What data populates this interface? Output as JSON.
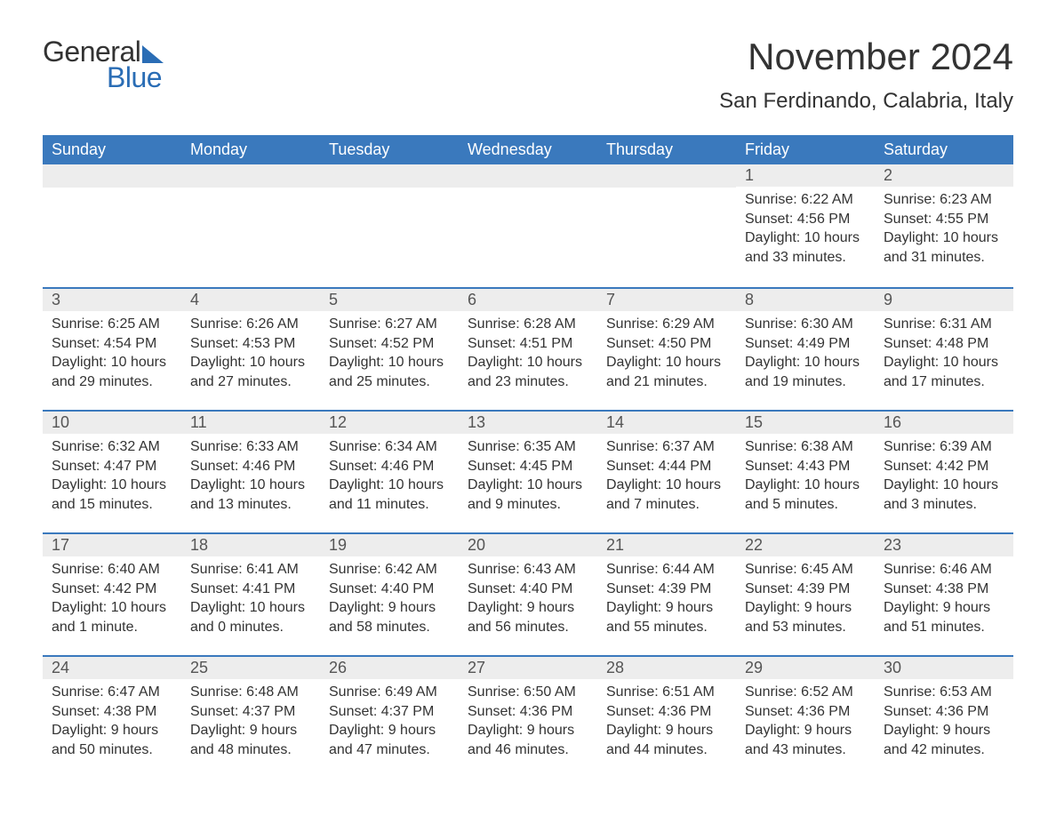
{
  "brand": {
    "text_general": "General",
    "text_blue": "Blue",
    "accent_color": "#2a6db5"
  },
  "header": {
    "month_title": "November 2024",
    "location": "San Ferdinando, Calabria, Italy"
  },
  "colors": {
    "header_bg": "#3a79bd",
    "header_fg": "#ffffff",
    "daynum_bg": "#ededed",
    "row_divider": "#3a79bd",
    "text": "#333333",
    "page_bg": "#ffffff"
  },
  "typography": {
    "title_fontsize_pt": 32,
    "location_fontsize_pt": 18,
    "dayheader_fontsize_pt": 14,
    "daynum_fontsize_pt": 14,
    "body_fontsize_pt": 12
  },
  "calendar": {
    "type": "table",
    "day_headers": [
      "Sunday",
      "Monday",
      "Tuesday",
      "Wednesday",
      "Thursday",
      "Friday",
      "Saturday"
    ],
    "weeks": [
      [
        null,
        null,
        null,
        null,
        null,
        {
          "n": "1",
          "sunrise": "Sunrise: 6:22 AM",
          "sunset": "Sunset: 4:56 PM",
          "daylight": "Daylight: 10 hours and 33 minutes."
        },
        {
          "n": "2",
          "sunrise": "Sunrise: 6:23 AM",
          "sunset": "Sunset: 4:55 PM",
          "daylight": "Daylight: 10 hours and 31 minutes."
        }
      ],
      [
        {
          "n": "3",
          "sunrise": "Sunrise: 6:25 AM",
          "sunset": "Sunset: 4:54 PM",
          "daylight": "Daylight: 10 hours and 29 minutes."
        },
        {
          "n": "4",
          "sunrise": "Sunrise: 6:26 AM",
          "sunset": "Sunset: 4:53 PM",
          "daylight": "Daylight: 10 hours and 27 minutes."
        },
        {
          "n": "5",
          "sunrise": "Sunrise: 6:27 AM",
          "sunset": "Sunset: 4:52 PM",
          "daylight": "Daylight: 10 hours and 25 minutes."
        },
        {
          "n": "6",
          "sunrise": "Sunrise: 6:28 AM",
          "sunset": "Sunset: 4:51 PM",
          "daylight": "Daylight: 10 hours and 23 minutes."
        },
        {
          "n": "7",
          "sunrise": "Sunrise: 6:29 AM",
          "sunset": "Sunset: 4:50 PM",
          "daylight": "Daylight: 10 hours and 21 minutes."
        },
        {
          "n": "8",
          "sunrise": "Sunrise: 6:30 AM",
          "sunset": "Sunset: 4:49 PM",
          "daylight": "Daylight: 10 hours and 19 minutes."
        },
        {
          "n": "9",
          "sunrise": "Sunrise: 6:31 AM",
          "sunset": "Sunset: 4:48 PM",
          "daylight": "Daylight: 10 hours and 17 minutes."
        }
      ],
      [
        {
          "n": "10",
          "sunrise": "Sunrise: 6:32 AM",
          "sunset": "Sunset: 4:47 PM",
          "daylight": "Daylight: 10 hours and 15 minutes."
        },
        {
          "n": "11",
          "sunrise": "Sunrise: 6:33 AM",
          "sunset": "Sunset: 4:46 PM",
          "daylight": "Daylight: 10 hours and 13 minutes."
        },
        {
          "n": "12",
          "sunrise": "Sunrise: 6:34 AM",
          "sunset": "Sunset: 4:46 PM",
          "daylight": "Daylight: 10 hours and 11 minutes."
        },
        {
          "n": "13",
          "sunrise": "Sunrise: 6:35 AM",
          "sunset": "Sunset: 4:45 PM",
          "daylight": "Daylight: 10 hours and 9 minutes."
        },
        {
          "n": "14",
          "sunrise": "Sunrise: 6:37 AM",
          "sunset": "Sunset: 4:44 PM",
          "daylight": "Daylight: 10 hours and 7 minutes."
        },
        {
          "n": "15",
          "sunrise": "Sunrise: 6:38 AM",
          "sunset": "Sunset: 4:43 PM",
          "daylight": "Daylight: 10 hours and 5 minutes."
        },
        {
          "n": "16",
          "sunrise": "Sunrise: 6:39 AM",
          "sunset": "Sunset: 4:42 PM",
          "daylight": "Daylight: 10 hours and 3 minutes."
        }
      ],
      [
        {
          "n": "17",
          "sunrise": "Sunrise: 6:40 AM",
          "sunset": "Sunset: 4:42 PM",
          "daylight": "Daylight: 10 hours and 1 minute."
        },
        {
          "n": "18",
          "sunrise": "Sunrise: 6:41 AM",
          "sunset": "Sunset: 4:41 PM",
          "daylight": "Daylight: 10 hours and 0 minutes."
        },
        {
          "n": "19",
          "sunrise": "Sunrise: 6:42 AM",
          "sunset": "Sunset: 4:40 PM",
          "daylight": "Daylight: 9 hours and 58 minutes."
        },
        {
          "n": "20",
          "sunrise": "Sunrise: 6:43 AM",
          "sunset": "Sunset: 4:40 PM",
          "daylight": "Daylight: 9 hours and 56 minutes."
        },
        {
          "n": "21",
          "sunrise": "Sunrise: 6:44 AM",
          "sunset": "Sunset: 4:39 PM",
          "daylight": "Daylight: 9 hours and 55 minutes."
        },
        {
          "n": "22",
          "sunrise": "Sunrise: 6:45 AM",
          "sunset": "Sunset: 4:39 PM",
          "daylight": "Daylight: 9 hours and 53 minutes."
        },
        {
          "n": "23",
          "sunrise": "Sunrise: 6:46 AM",
          "sunset": "Sunset: 4:38 PM",
          "daylight": "Daylight: 9 hours and 51 minutes."
        }
      ],
      [
        {
          "n": "24",
          "sunrise": "Sunrise: 6:47 AM",
          "sunset": "Sunset: 4:38 PM",
          "daylight": "Daylight: 9 hours and 50 minutes."
        },
        {
          "n": "25",
          "sunrise": "Sunrise: 6:48 AM",
          "sunset": "Sunset: 4:37 PM",
          "daylight": "Daylight: 9 hours and 48 minutes."
        },
        {
          "n": "26",
          "sunrise": "Sunrise: 6:49 AM",
          "sunset": "Sunset: 4:37 PM",
          "daylight": "Daylight: 9 hours and 47 minutes."
        },
        {
          "n": "27",
          "sunrise": "Sunrise: 6:50 AM",
          "sunset": "Sunset: 4:36 PM",
          "daylight": "Daylight: 9 hours and 46 minutes."
        },
        {
          "n": "28",
          "sunrise": "Sunrise: 6:51 AM",
          "sunset": "Sunset: 4:36 PM",
          "daylight": "Daylight: 9 hours and 44 minutes."
        },
        {
          "n": "29",
          "sunrise": "Sunrise: 6:52 AM",
          "sunset": "Sunset: 4:36 PM",
          "daylight": "Daylight: 9 hours and 43 minutes."
        },
        {
          "n": "30",
          "sunrise": "Sunrise: 6:53 AM",
          "sunset": "Sunset: 4:36 PM",
          "daylight": "Daylight: 9 hours and 42 minutes."
        }
      ]
    ]
  }
}
